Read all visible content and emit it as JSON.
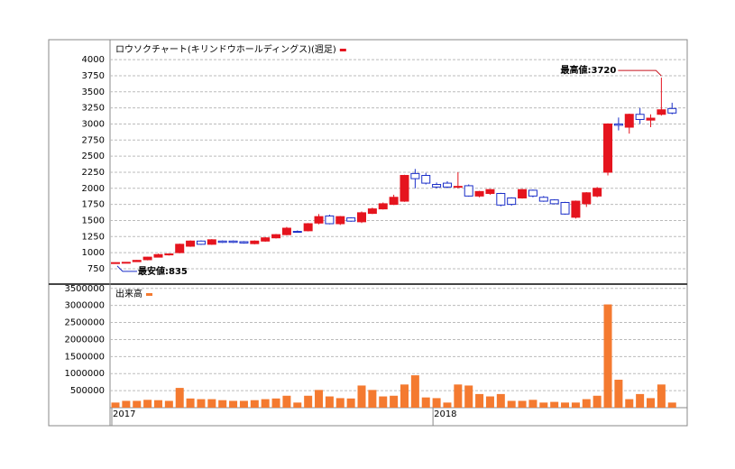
{
  "chart_data": [
    {
      "type": "candlestick",
      "title": "ロウソクチャート(キリンドウホールディングス)(週足)",
      "up_color": "#e5141e",
      "down_color": "#1a2ec8",
      "open": [
        840,
        845,
        860,
        890,
        930,
        965,
        1000,
        1100,
        1180,
        1130,
        1180,
        1180,
        1170,
        1140,
        1180,
        1230,
        1280,
        1330,
        1340,
        1460,
        1570,
        1450,
        1540,
        1480,
        1610,
        1680,
        1750,
        1800,
        2230,
        2200,
        2060,
        2080,
        2020,
        2040,
        1880,
        1920,
        1920,
        1850,
        1850,
        1970,
        1860,
        1820,
        1780,
        1550,
        1760,
        1880,
        2250,
        3000,
        2950,
        3150,
        3060,
        3150,
        3240
      ],
      "high": [
        850,
        850,
        885,
        935,
        985,
        985,
        1140,
        1190,
        1190,
        1210,
        1190,
        1190,
        1180,
        1190,
        1240,
        1290,
        1400,
        1345,
        1460,
        1600,
        1590,
        1570,
        1550,
        1640,
        1700,
        1780,
        1900,
        2210,
        2300,
        2240,
        2090,
        2110,
        2250,
        2060,
        1960,
        1990,
        1930,
        1860,
        1990,
        1980,
        1880,
        1830,
        1790,
        1810,
        1940,
        2020,
        3010,
        3100,
        3160,
        3250,
        3150,
        3720,
        3330
      ],
      "low": [
        835,
        838,
        855,
        880,
        925,
        955,
        990,
        1090,
        1120,
        1120,
        1150,
        1150,
        1140,
        1130,
        1170,
        1220,
        1270,
        1310,
        1330,
        1440,
        1440,
        1430,
        1480,
        1460,
        1600,
        1670,
        1740,
        1790,
        2000,
        2060,
        2000,
        2000,
        2000,
        1870,
        1860,
        1900,
        1720,
        1730,
        1840,
        1860,
        1790,
        1750,
        1590,
        1530,
        1710,
        1860,
        2200,
        2900,
        2850,
        3000,
        2950,
        3130,
        3150
      ],
      "close": [
        845,
        850,
        880,
        930,
        970,
        980,
        1130,
        1180,
        1130,
        1200,
        1160,
        1160,
        1150,
        1180,
        1230,
        1280,
        1380,
        1320,
        1450,
        1560,
        1450,
        1560,
        1490,
        1620,
        1680,
        1760,
        1860,
        2200,
        2150,
        2080,
        2020,
        2020,
        2030,
        1880,
        1950,
        1980,
        1740,
        1750,
        1980,
        1880,
        1800,
        1760,
        1600,
        1800,
        1930,
        2000,
        3000,
        2980,
        3150,
        3070,
        3090,
        3220,
        3170
      ],
      "ylim": [
        525,
        4310
      ],
      "yticks": [
        750,
        1000,
        1250,
        1500,
        1750,
        2000,
        2250,
        2500,
        2750,
        3000,
        3250,
        3500,
        3750,
        4000
      ],
      "annotations": [
        {
          "label": "最高値:3720",
          "value": 3720,
          "color": "#c8141e"
        },
        {
          "label": "最安値:835",
          "value": 835,
          "color": "#1a2ec8"
        }
      ],
      "grid": true
    },
    {
      "type": "bar",
      "title": "出来高",
      "color": "#f47a30",
      "categories": [
        "2017",
        null,
        null,
        null,
        null,
        null,
        null,
        null,
        null,
        null,
        null,
        null,
        null,
        null,
        null,
        null,
        null,
        null,
        null,
        null,
        null,
        null,
        null,
        null,
        null,
        null,
        null,
        null,
        null,
        null,
        "2018",
        null,
        null,
        null,
        null,
        null,
        null,
        null,
        null,
        null,
        null,
        null,
        null,
        null,
        null,
        null,
        null,
        null,
        null,
        null,
        null,
        null,
        null
      ],
      "values": [
        150000,
        200000,
        200000,
        230000,
        220000,
        200000,
        580000,
        270000,
        250000,
        250000,
        220000,
        200000,
        200000,
        220000,
        250000,
        270000,
        350000,
        150000,
        350000,
        520000,
        330000,
        280000,
        270000,
        650000,
        520000,
        330000,
        350000,
        680000,
        950000,
        300000,
        280000,
        150000,
        680000,
        650000,
        400000,
        330000,
        400000,
        200000,
        200000,
        230000,
        150000,
        170000,
        150000,
        150000,
        250000,
        350000,
        3030000,
        820000,
        250000,
        400000,
        280000,
        680000,
        150000
      ],
      "ylim": [
        0,
        3600000
      ],
      "yticks": [
        500000,
        1000000,
        1500000,
        2000000,
        2500000,
        3000000,
        3500000
      ],
      "grid": true
    }
  ]
}
